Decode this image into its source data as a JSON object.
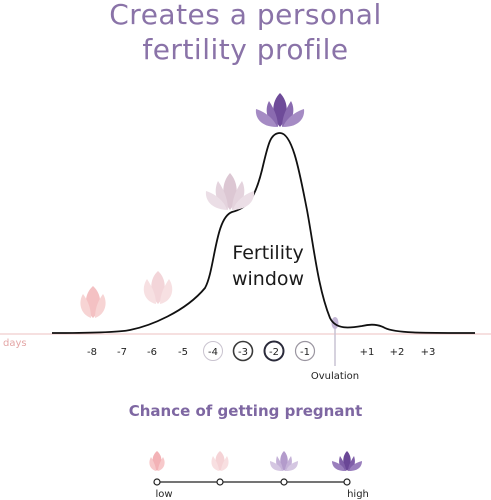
{
  "title": {
    "line1": "Creates a personal",
    "line2": "fertility profile"
  },
  "diagram": {
    "axis_label": "days",
    "day_labels": [
      "-8",
      "-7",
      "-6",
      "-5",
      "-4",
      "-3",
      "-2",
      "-1",
      "+1",
      "+2",
      "+3"
    ],
    "circled_days": [
      "-4",
      "-3",
      "-2",
      "-1"
    ],
    "window_label_line1": "Fertility",
    "window_label_line2": "window",
    "ovulation_label": "Ovulation"
  },
  "legend": {
    "title": "Chance of getting pregnant",
    "low_label": "low",
    "high_label": "high"
  },
  "colors": {
    "title": "#8a73a8",
    "baseline": "#e9b6b6",
    "pink": "#f0b4b8",
    "lilac": "#b29ac5",
    "purple": "#6e4b99",
    "curve": "#111111"
  }
}
